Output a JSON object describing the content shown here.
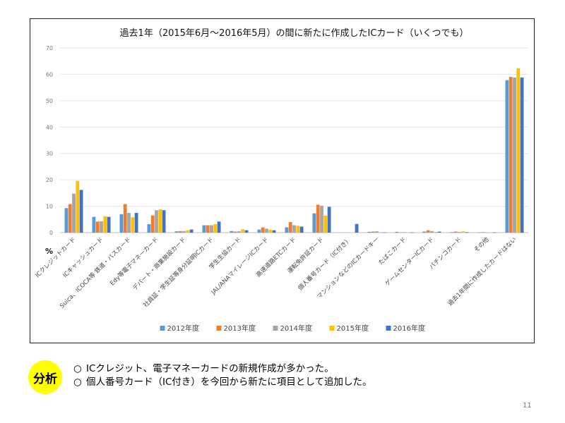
{
  "slide": {
    "page_number": "11",
    "analysis": {
      "badge": "分析",
      "points": [
        {
          "bullet": "○",
          "text": "ICクレジット、電子マネーカードの新規作成が多かった。"
        },
        {
          "bullet": "○",
          "text": "個人番号カード（IC付き）を今回から新たに項目として追加した。"
        }
      ]
    }
  },
  "chart_data": {
    "type": "bar",
    "title": "過去1年（2015年6月～2016年5月）の間に新たに作成したICカード（いくつでも）",
    "ylabel": "%",
    "ylim": [
      0,
      70
    ],
    "yticks": [
      0,
      10,
      20,
      30,
      40,
      50,
      60,
      70
    ],
    "legend_position": "bottom",
    "grid": true,
    "categories": [
      "ICクレジットカード",
      "ICキャッシュカード",
      "Suica、ICOCA等 鉄道・バスカード",
      "Edy等電子マネーカード",
      "デパート・商業施設カード",
      "社員証・学生証等身分証明ICカード",
      "学生生協カード",
      "JAL/ANAマイレージICカード",
      "高速道路ETCカード",
      "運転免許証カード",
      "個人番号カード（IC付き）",
      "マンションなどのICカードキー",
      "たばこカード",
      "ゲームセンターICカード",
      "パチンコカード",
      "その他",
      "過去1年間に作成したカードはない"
    ],
    "series": [
      {
        "name": "2012年度",
        "color": "#5b9bd5",
        "values": [
          9.3,
          6.0,
          7.0,
          3.2,
          0.5,
          2.8,
          0.6,
          1.2,
          2.0,
          7.3,
          null,
          0.3,
          0.3,
          0.4,
          0.2,
          0.1,
          57.8
        ]
      },
      {
        "name": "2013年度",
        "color": "#ed7d31",
        "values": [
          10.8,
          4.2,
          10.8,
          6.5,
          0.6,
          2.8,
          0.4,
          2.0,
          4.0,
          10.6,
          null,
          0.4,
          0.1,
          0.9,
          0.4,
          0.2,
          59.0
        ]
      },
      {
        "name": "2014年度",
        "color": "#a5a5a5",
        "values": [
          14.8,
          4.3,
          7.5,
          8.5,
          0.6,
          2.8,
          0.5,
          1.5,
          2.8,
          10.2,
          null,
          0.5,
          0.2,
          0.6,
          0.3,
          0.1,
          58.8
        ]
      },
      {
        "name": "2015年度",
        "color": "#ffc000",
        "values": [
          19.6,
          6.2,
          5.8,
          8.8,
          0.9,
          3.2,
          1.3,
          1.1,
          2.6,
          6.4,
          null,
          0.2,
          0.1,
          0.3,
          0.5,
          0.1,
          62.3
        ]
      },
      {
        "name": "2016年度",
        "color": "#4472c4",
        "values": [
          16.2,
          6.0,
          7.5,
          8.5,
          1.2,
          4.2,
          0.9,
          0.9,
          2.3,
          9.8,
          3.3,
          0.1,
          0.1,
          0.4,
          0.2,
          0.1,
          58.8
        ]
      }
    ]
  }
}
